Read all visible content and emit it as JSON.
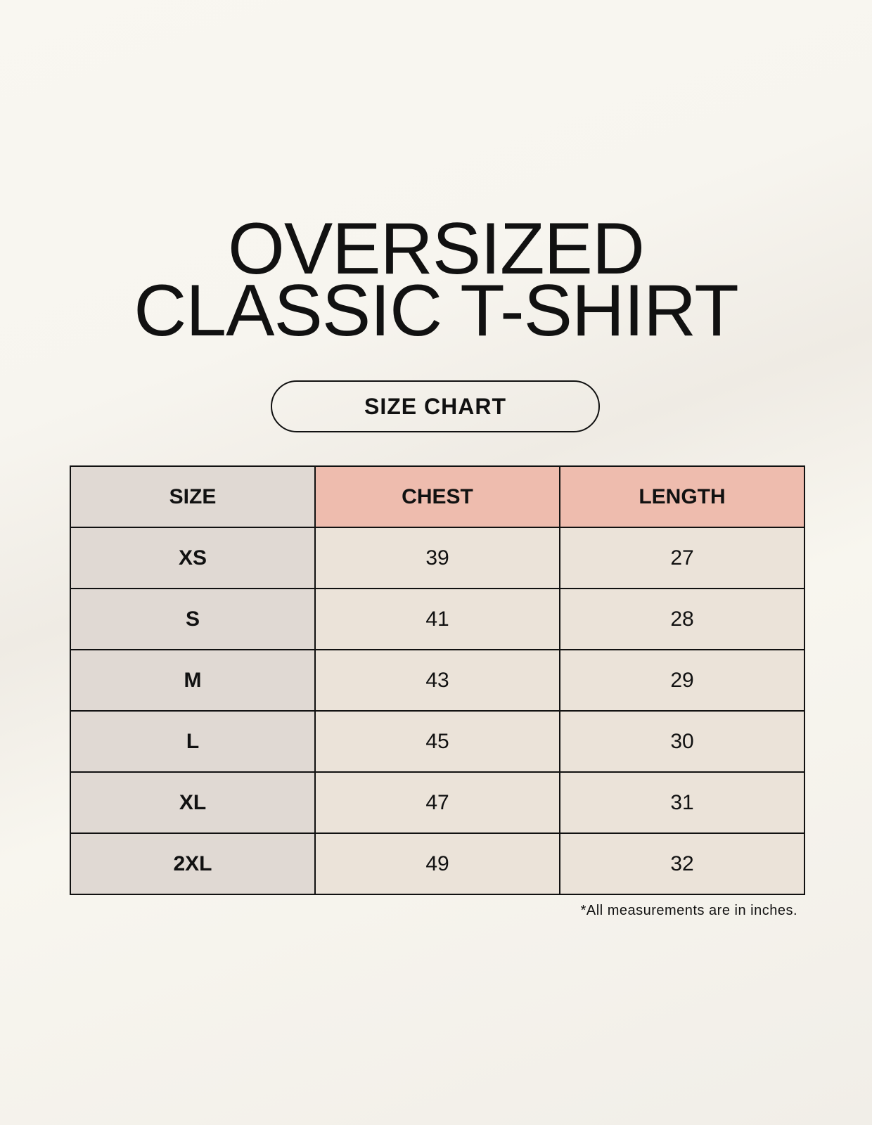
{
  "title_line1": "OVERSIZED",
  "title_line2": "CLASSIC T-SHIRT",
  "subtitle": "SIZE CHART",
  "table": {
    "headers": [
      "SIZE",
      "CHEST",
      "LENGTH"
    ],
    "rows": [
      [
        "XS",
        "39",
        "27"
      ],
      [
        "S",
        "41",
        "28"
      ],
      [
        "M",
        "43",
        "29"
      ],
      [
        "L",
        "45",
        "30"
      ],
      [
        "XL",
        "47",
        "31"
      ],
      [
        "2XL",
        "49",
        "32"
      ]
    ]
  },
  "footnote": "*All measurements are in inches.",
  "colors": {
    "size_column": "#e0d9d3",
    "header": "#eebcae",
    "cell": "#ebe3d9"
  }
}
